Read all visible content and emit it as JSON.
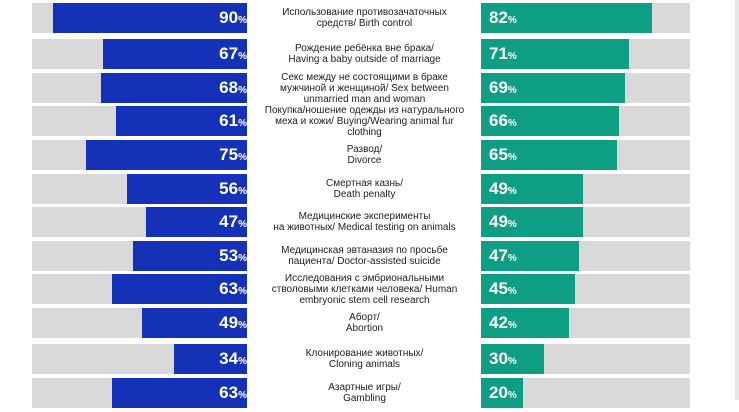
{
  "chart_data": {
    "type": "bar",
    "orientation": "horizontal-diverging",
    "unit": "%",
    "categories": [
      "Использование противозачаточных средств/ Birth control",
      "Рождение ребёнка вне брака/ Having a baby outside of marriage",
      "Секс между не состоящими в браке мужчиной и женщиной/ Sex between unmarried man and woman",
      "Покупка/ношение одежды из натурального меха и кожи/ Buying/Wearing animal fur clothing",
      "Развод/ Divorce",
      "Смертная казнь/ Death penalty",
      "Медицинские эксперименты на животных/ Medical testing on animals",
      "Медицинская эвтаназия по просьбе пациента/ Doctor-assisted suicide",
      "Исследования с эмбриональными стволовыми клетками человека/ Human embryonic stem cell research",
      "Аборт/ Abortion",
      "Клонирование животных/ Cloning animals",
      "Азартные игры/ Gambling"
    ],
    "labels": [
      [
        "Использование противозачаточных",
        "средств/ Birth control"
      ],
      [
        "Рождение ребёнка вне брака/",
        "Having a baby outside of marriage"
      ],
      [
        "Секс между не состоящими в браке",
        "мужчиной и женщиной/ Sex between",
        "unmarried man and woman"
      ],
      [
        "Покупка/ношение одежды из натурального",
        "меха и кожи/ Buying/Wearing animal fur",
        "clothing"
      ],
      [
        "Развод/",
        "Divorce"
      ],
      [
        "Смертная казнь/",
        "Death penalty"
      ],
      [
        "Медицинские эксперименты",
        "на животных/ Medical testing on animals"
      ],
      [
        "Медицинская эвтаназия по просьбе",
        "пациента/ Doctor-assisted suicide"
      ],
      [
        "Исследования с эмбриональными",
        "стволовыми клетками человека/ Human",
        "embryonic stem cell research"
      ],
      [
        "Аборт/",
        "Abortion"
      ],
      [
        "Клонирование животных/",
        "Cloning animals"
      ],
      [
        "Азартные игры/",
        "Gambling"
      ]
    ],
    "series": [
      {
        "values": [
          90,
          67,
          68,
          61,
          75,
          56,
          47,
          53,
          63,
          49,
          34,
          63
        ]
      },
      {
        "values": [
          82,
          71,
          69,
          66,
          65,
          49,
          49,
          47,
          45,
          42,
          30,
          20
        ]
      }
    ],
    "xlim": [
      0,
      100
    ],
    "colors": {
      "left": "#1531b8",
      "right": "#0e9e84",
      "track": "#d9d9d9"
    }
  }
}
